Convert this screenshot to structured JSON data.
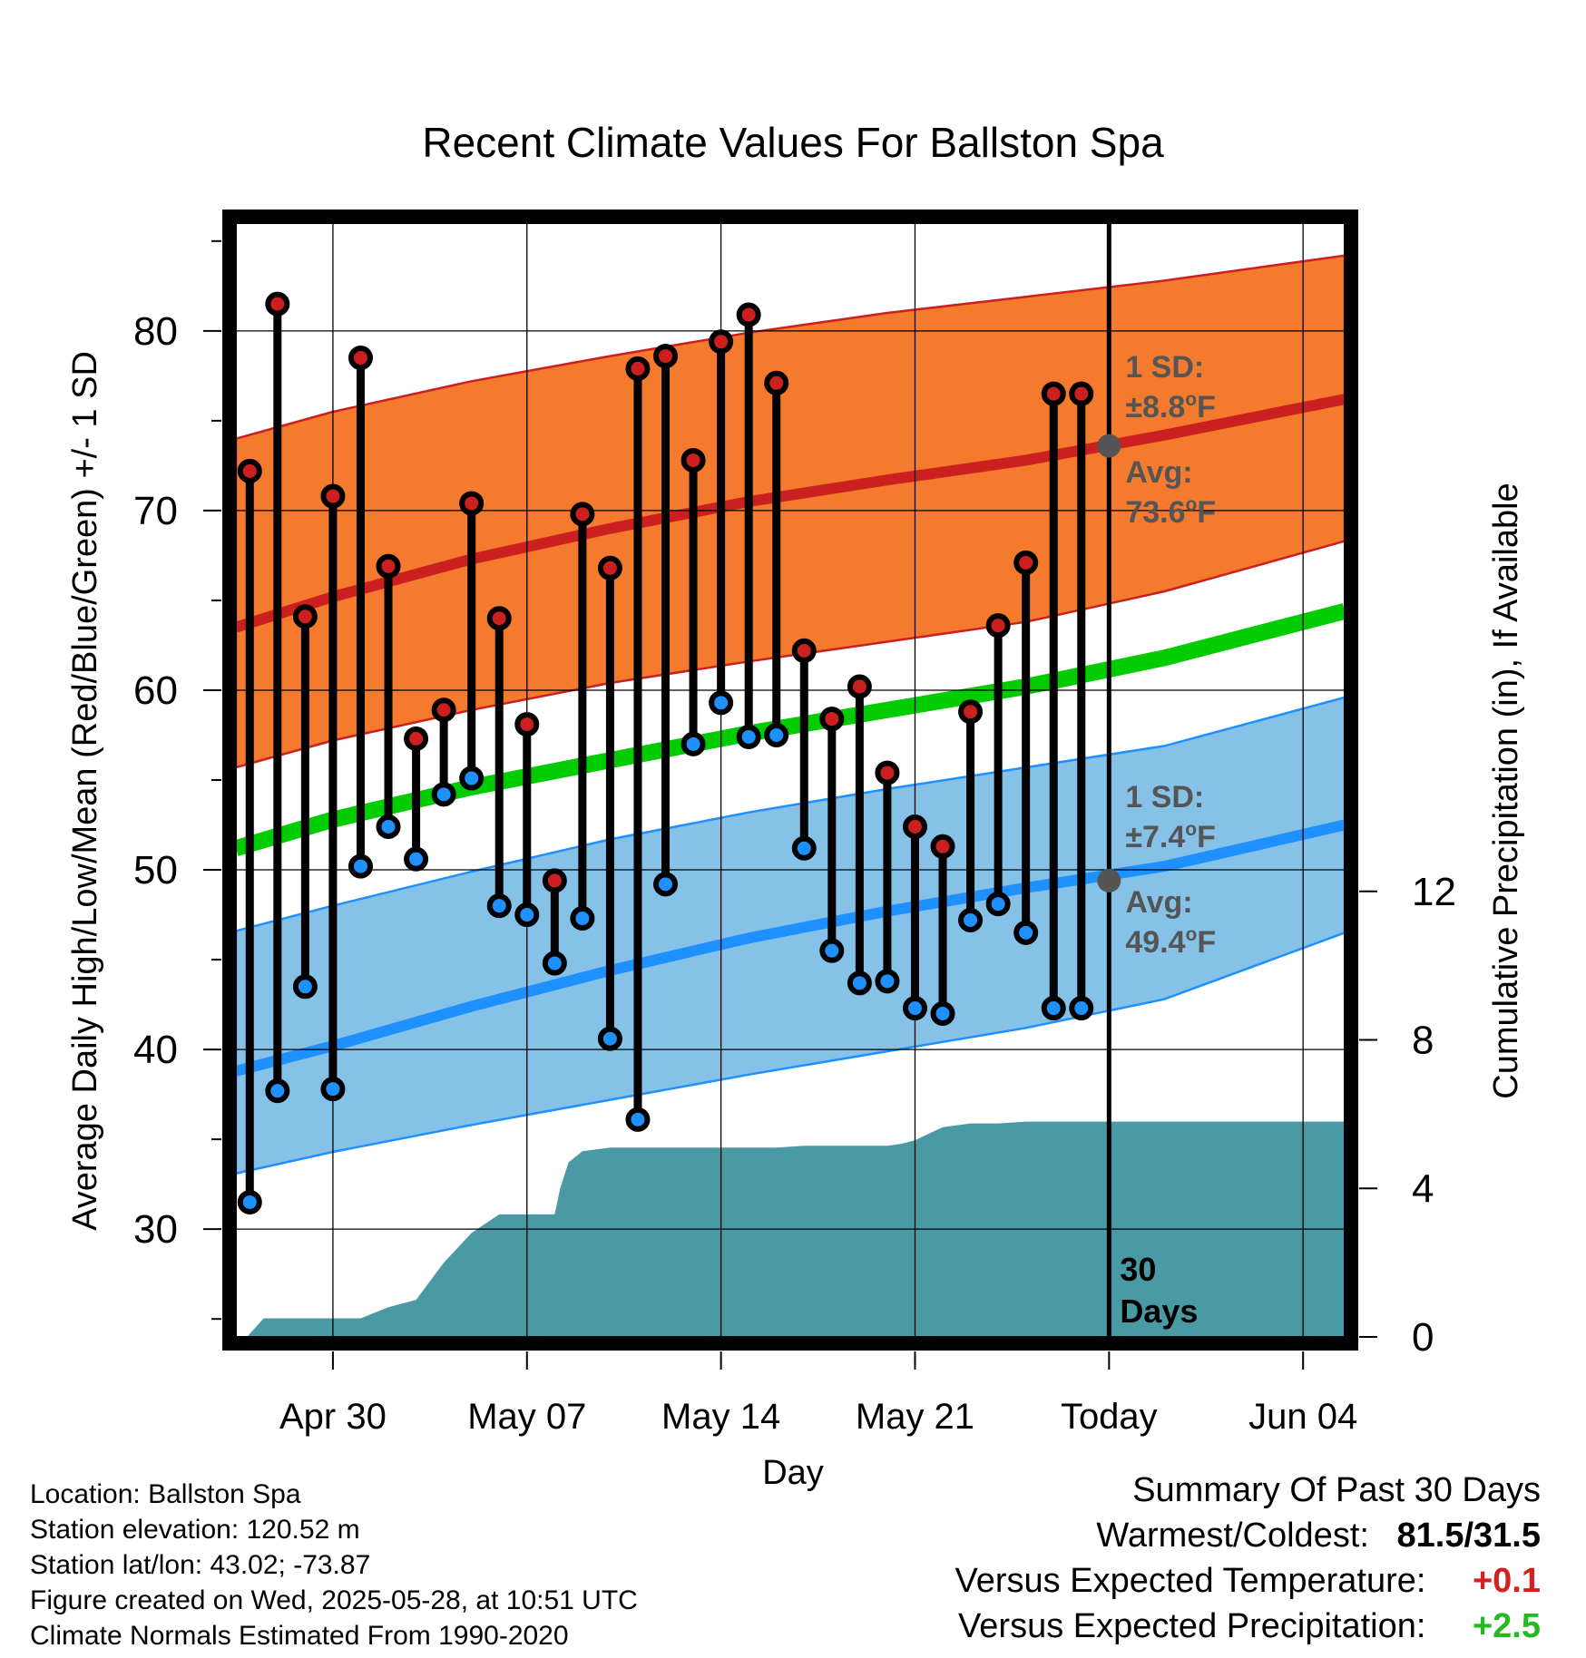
{
  "chart_data": {
    "type": "line",
    "title": "Recent Climate Values For Ballston Spa",
    "xlabel": "Day",
    "ylabel": "Average Daily High/Low/Mean (Red/Blue/Green) +/- 1 SD",
    "y2label": "Cumulative Precipitation (in), If Available",
    "ylim": [
      24,
      86
    ],
    "y2lim": [
      0,
      30
    ],
    "y_ticks": [
      30,
      40,
      50,
      60,
      70,
      80
    ],
    "y2_ticks": [
      0,
      4,
      8,
      12
    ],
    "x_ticks": [
      {
        "day": 30,
        "label": "Apr 30"
      },
      {
        "day": 37,
        "label": "May 07"
      },
      {
        "day": 44,
        "label": "May 14"
      },
      {
        "day": 51,
        "label": "May 21"
      },
      {
        "day": 58,
        "label": "Today"
      },
      {
        "day": 65,
        "label": "Jun 04"
      }
    ],
    "grid": true,
    "colors": {
      "high": "#cc2020",
      "low": "#1e90ff",
      "mean": "#00cc00",
      "high_band": "#f47a2e",
      "low_band": "#86c2e8",
      "precip": "#4a9aa5",
      "annotation": "#555555"
    },
    "observations": {
      "days": [
        27,
        28,
        29,
        30,
        31,
        32,
        33,
        34,
        35,
        36,
        37,
        38,
        39,
        40,
        41,
        42,
        43,
        44,
        45,
        46,
        47,
        48,
        49,
        50,
        51,
        52,
        53,
        54,
        55,
        56,
        57
      ],
      "high": [
        72.2,
        81.5,
        64.1,
        70.8,
        78.5,
        66.9,
        57.3,
        58.9,
        70.4,
        64.0,
        58.1,
        49.4,
        69.8,
        66.8,
        77.9,
        78.6,
        72.8,
        79.4,
        80.9,
        77.1,
        62.2,
        58.4,
        60.2,
        55.4,
        52.4,
        51.3,
        58.8,
        63.6,
        67.1,
        76.5,
        76.5
      ],
      "low": [
        31.5,
        37.7,
        43.5,
        37.8,
        50.2,
        52.4,
        50.6,
        54.2,
        55.1,
        48.0,
        47.5,
        44.8,
        47.3,
        40.6,
        36.1,
        49.2,
        57.0,
        59.3,
        57.4,
        57.5,
        51.2,
        45.5,
        43.7,
        43.8,
        42.3,
        42.0,
        47.2,
        48.1,
        46.5,
        42.3,
        42.3
      ]
    },
    "normals": {
      "days": [
        26.5,
        30,
        35,
        40,
        45,
        50,
        55,
        60,
        66.5
      ],
      "avg_high": [
        63.5,
        65.2,
        67.3,
        69.0,
        70.5,
        71.7,
        72.8,
        74.2,
        76.2
      ],
      "avg_low": [
        38.8,
        40.2,
        42.4,
        44.4,
        46.2,
        47.7,
        49.0,
        50.2,
        52.5
      ],
      "avg_mean": [
        51.2,
        52.8,
        54.6,
        56.1,
        57.6,
        58.9,
        60.2,
        61.8,
        64.4
      ],
      "high_upper": [
        74.0,
        75.5,
        77.2,
        78.6,
        79.9,
        81.0,
        81.9,
        82.8,
        84.2
      ],
      "high_lower": [
        55.7,
        57.2,
        58.9,
        60.4,
        61.6,
        62.7,
        63.8,
        65.5,
        68.3
      ],
      "low_upper": [
        46.6,
        48.0,
        49.9,
        51.7,
        53.2,
        54.5,
        55.7,
        56.9,
        59.6
      ],
      "low_lower": [
        33.1,
        34.3,
        35.8,
        37.2,
        38.6,
        39.9,
        41.2,
        42.8,
        46.5
      ]
    },
    "precipitation": {
      "days": [
        26.9,
        27.5,
        28.0,
        29.0,
        30.0,
        31.0,
        32.0,
        33.0,
        34.0,
        35.0,
        36.0,
        37.0,
        38.0,
        38.2,
        38.5,
        39.0,
        40.0,
        41.0,
        42.0,
        43.0,
        44.0,
        45.0,
        46.0,
        47.0,
        48.0,
        49.0,
        50.0,
        50.5,
        51.0,
        52.0,
        53.0,
        54.0,
        55.0,
        56.0,
        57.0,
        58.0,
        66.5
      ],
      "cumulative": [
        0,
        0.5,
        0.5,
        0.5,
        0.5,
        0.5,
        0.8,
        1.0,
        2.0,
        2.8,
        3.3,
        3.3,
        3.3,
        4.0,
        4.7,
        5.0,
        5.1,
        5.1,
        5.1,
        5.1,
        5.1,
        5.1,
        5.1,
        5.15,
        5.15,
        5.15,
        5.15,
        5.2,
        5.3,
        5.65,
        5.75,
        5.75,
        5.8,
        5.8,
        5.8,
        5.8,
        5.8
      ]
    },
    "today_marker": {
      "day": 58,
      "label_1": "30",
      "label_2": "Days"
    },
    "annotations": {
      "high_sd_label": "1 SD:",
      "high_sd_value": "±8.8",
      "high_avg_label": "Avg:",
      "high_avg_value": "73.6",
      "high_avg": 73.6,
      "low_sd_label": "1 SD:",
      "low_sd_value": "±7.4",
      "low_avg_label": "Avg:",
      "low_avg_value": "49.4",
      "low_avg": 49.4,
      "deg_sup": "o",
      "unit": "F"
    }
  },
  "footer": {
    "location": "Location: Ballston Spa",
    "elevation": "Station elevation: 120.52 m",
    "latlon": "Station lat/lon: 43.02; -73.87",
    "created": "Figure created on Wed, 2025-05-28, at 10:51 UTC",
    "normals": "Climate Normals Estimated From 1990-2020"
  },
  "summary": {
    "title": "Summary Of Past 30 Days",
    "warm_cold_label": "Warmest/Coldest:",
    "warm_cold_value": "81.5/31.5",
    "temp_label": "Versus Expected Temperature:",
    "temp_value": "+0.1",
    "temp_color": "#d42020",
    "precip_label": "Versus Expected Precipitation:",
    "precip_value": "+2.5",
    "precip_color": "#22bb22"
  }
}
